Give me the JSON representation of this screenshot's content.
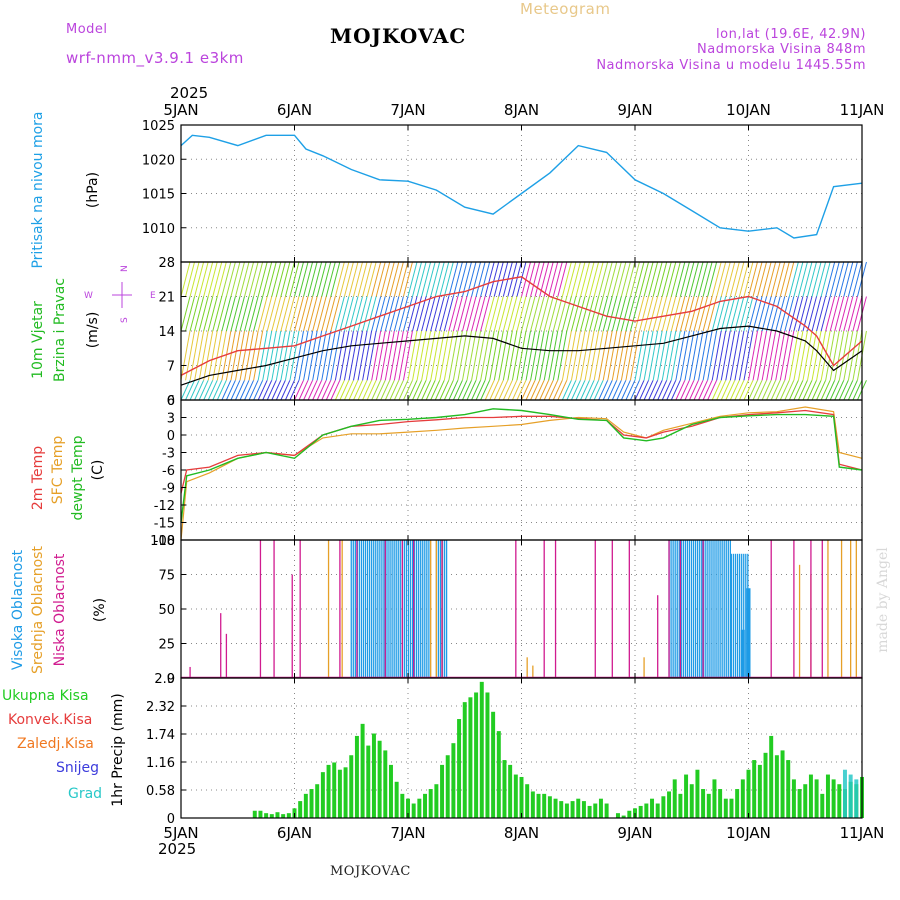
{
  "header": {
    "model_label": "Model",
    "model_name": "wrf-nmm_v3.9.1 e3km",
    "station": "MOJKOVAC",
    "product": "Meteogram",
    "lonlat": "lon,lat (19.6E, 42.9N)",
    "elevation": "Nadmorska Visina 848m",
    "model_elevation": "Nadmorska Visina u modelu 1445.55m",
    "footer_station": "MOJKOVAC",
    "watermark": "made by Angel"
  },
  "colors": {
    "pressure": "#1ea0e6",
    "wind_speed": "#000000",
    "wind_gust": "#e63c3c",
    "t2m": "#e63c3c",
    "sfc": "#e6a028",
    "dewpt": "#22bb22",
    "cloud_high": "#1e9be6",
    "cloud_mid": "#e6a028",
    "cloud_low": "#d01b8f",
    "precip_total": "#22cc22",
    "precip_conv": "#e63c3c",
    "precip_frz": "#f07820",
    "precip_snow": "#3c3cdc",
    "precip_graupel": "#28c8c8",
    "compass": "#bb44dd"
  },
  "time_axis": {
    "year": "2025",
    "labels": [
      "5JAN",
      "6JAN",
      "7JAN",
      "8JAN",
      "9JAN",
      "10JAN",
      "11JAN"
    ]
  },
  "chart_data": [
    {
      "type": "line",
      "id": "pressure",
      "title": "Pritisak na nivou mora",
      "ylabel": "(hPa)",
      "ylim": [
        1005,
        1025
      ],
      "yticks": [
        "1025",
        "1020",
        "1015",
        "1010"
      ],
      "x": [
        0,
        0.1,
        0.25,
        0.5,
        0.75,
        1.0,
        1.1,
        1.25,
        1.5,
        1.75,
        2.0,
        2.25,
        2.5,
        2.75,
        3.0,
        3.25,
        3.5,
        3.75,
        4.0,
        4.25,
        4.5,
        4.75,
        5.0,
        5.25,
        5.4,
        5.6,
        5.75,
        6.0
      ],
      "values": [
        1022,
        1023.5,
        1023.2,
        1022,
        1023.5,
        1023.5,
        1021.5,
        1020.5,
        1018.5,
        1017,
        1016.8,
        1015.5,
        1013,
        1012,
        1015,
        1018,
        1022,
        1021,
        1017,
        1015,
        1012.5,
        1010,
        1009.5,
        1010,
        1008.5,
        1009,
        1016,
        1016.5
      ]
    },
    {
      "type": "line",
      "id": "wind",
      "title": "10m Vjetar Brzina i Pravac",
      "ylabel": "(m/s)",
      "ylim": [
        0,
        28
      ],
      "yticks": [
        "28",
        "21",
        "14",
        "7",
        "0"
      ],
      "compass": {
        "n": "N",
        "s": "S",
        "e": "E",
        "w": "W"
      },
      "series": [
        {
          "name": "Wind speed",
          "x": [
            0,
            0.25,
            0.5,
            0.75,
            1.0,
            1.25,
            1.5,
            1.75,
            2.0,
            2.25,
            2.5,
            2.75,
            3.0,
            3.25,
            3.5,
            3.75,
            4.0,
            4.25,
            4.5,
            4.75,
            5.0,
            5.25,
            5.5,
            5.6,
            5.75,
            6.0
          ],
          "values": [
            3,
            5,
            6,
            7,
            8.5,
            10,
            11,
            11.5,
            12,
            12.5,
            13,
            12.5,
            10.5,
            10,
            10,
            10.5,
            11,
            11.5,
            13,
            14.5,
            15,
            14,
            12,
            10,
            6,
            10
          ]
        },
        {
          "name": "Wind gust",
          "x": [
            0,
            0.25,
            0.5,
            0.75,
            1.0,
            1.25,
            1.5,
            1.75,
            2.0,
            2.25,
            2.5,
            2.75,
            3.0,
            3.25,
            3.5,
            3.75,
            4.0,
            4.25,
            4.5,
            4.75,
            5.0,
            5.25,
            5.5,
            5.6,
            5.75,
            6.0
          ],
          "values": [
            5,
            8,
            10,
            10.5,
            11,
            13,
            15,
            17,
            19,
            21,
            22,
            24,
            25,
            21,
            19,
            17,
            16,
            17,
            18,
            20,
            21,
            19,
            15,
            13,
            7,
            12
          ]
        }
      ]
    },
    {
      "type": "line",
      "id": "temperature",
      "labels": [
        "2m Temp",
        "SFC Temp",
        "dewpt Temp"
      ],
      "ylabel": "(C)",
      "ylim": [
        -18,
        6
      ],
      "yticks": [
        "6",
        "3",
        "0",
        "-3",
        "-6",
        "-9",
        "-12",
        "-15",
        "-18"
      ],
      "series": [
        {
          "name": "2m Temp",
          "x": [
            0,
            0.05,
            0.25,
            0.5,
            0.75,
            1.0,
            1.25,
            1.5,
            1.75,
            2.0,
            2.25,
            2.5,
            2.75,
            3.0,
            3.25,
            3.5,
            3.75,
            3.9,
            4.1,
            4.25,
            4.5,
            4.75,
            5.0,
            5.25,
            5.5,
            5.75,
            5.8,
            6.0
          ],
          "values": [
            -10,
            -6,
            -5.5,
            -3.5,
            -3,
            -3.5,
            0,
            1.5,
            1.8,
            2.3,
            2.6,
            3.0,
            3.0,
            3.2,
            3.2,
            2.8,
            2.5,
            0,
            -0.5,
            0.5,
            1.5,
            3.0,
            3.5,
            3.8,
            4.2,
            3.5,
            -5,
            -6
          ]
        },
        {
          "name": "SFC Temp",
          "x": [
            0,
            0.05,
            0.25,
            0.5,
            0.75,
            1.0,
            1.25,
            1.5,
            1.75,
            2.0,
            2.25,
            2.5,
            2.75,
            3.0,
            3.25,
            3.5,
            3.75,
            3.9,
            4.1,
            4.25,
            4.5,
            4.75,
            5.0,
            5.25,
            5.5,
            5.75,
            5.8,
            6.0
          ],
          "values": [
            -18,
            -8,
            -6.5,
            -4,
            -3,
            -3.5,
            -0.5,
            0.2,
            0.2,
            0.5,
            0.8,
            1.2,
            1.5,
            1.8,
            2.5,
            3.0,
            2.8,
            0.5,
            -0.5,
            0.8,
            2.0,
            3.2,
            3.8,
            4.0,
            4.8,
            4.0,
            -3,
            -4
          ]
        },
        {
          "name": "dewpt Temp",
          "x": [
            0,
            0.05,
            0.25,
            0.5,
            0.75,
            1.0,
            1.25,
            1.5,
            1.75,
            2.0,
            2.25,
            2.5,
            2.75,
            3.0,
            3.25,
            3.5,
            3.75,
            3.9,
            4.1,
            4.25,
            4.5,
            4.75,
            5.0,
            5.25,
            5.5,
            5.75,
            5.8,
            6.0
          ],
          "values": [
            -15,
            -7,
            -6,
            -4,
            -3,
            -4,
            0,
            1.5,
            2.5,
            2.7,
            3,
            3.5,
            4.5,
            4.2,
            3.5,
            2.7,
            2.5,
            -0.5,
            -1,
            -0.5,
            1.8,
            3.0,
            3.3,
            3.5,
            3.5,
            3.2,
            -5.5,
            -6
          ]
        }
      ]
    },
    {
      "type": "bar",
      "id": "cloud",
      "labels": [
        "Visoka Oblacnost",
        "Srednja Oblacnost",
        "Niska Oblacnost"
      ],
      "ylabel": "(%)",
      "ylim": [
        0,
        100
      ],
      "yticks": [
        "100",
        "75",
        "50",
        "25",
        "0"
      ],
      "series": [
        {
          "name": "Niska Oblacnost",
          "x": [
            0.08,
            0.35,
            0.4,
            0.7,
            0.82,
            0.98,
            1.05,
            1.4,
            1.55,
            1.8,
            1.95,
            2.05,
            2.3,
            2.95,
            3.2,
            3.3,
            3.65,
            3.8,
            3.95,
            4.2,
            4.3,
            4.4,
            4.6,
            5.2,
            5.4,
            5.55,
            5.65
          ],
          "values": [
            8,
            47,
            32,
            100,
            100,
            75,
            100,
            100,
            100,
            100,
            100,
            100,
            100,
            100,
            100,
            100,
            100,
            100,
            100,
            60,
            100,
            100,
            100,
            100,
            100,
            100,
            100
          ]
        },
        {
          "name": "Srednja Oblacnost",
          "x": [
            1.3,
            1.42,
            2.2,
            2.25,
            2.3,
            3.05,
            3.1,
            4.08,
            5.45,
            5.55,
            5.7,
            5.82,
            5.9,
            5.95
          ],
          "values": [
            100,
            100,
            100,
            100,
            100,
            15,
            9,
            15,
            82,
            75,
            100,
            100,
            100,
            100
          ]
        },
        {
          "name": "Visoka Oblacnost",
          "range_fills": [
            [
              1.5,
              2.2,
              100
            ],
            [
              2.25,
              2.35,
              100
            ],
            [
              4.3,
              4.85,
              100
            ],
            [
              4.85,
              5.0,
              90
            ]
          ],
          "x": [
            4.95,
            5.0
          ],
          "values": [
            35,
            65
          ]
        }
      ]
    },
    {
      "type": "bar",
      "id": "precip",
      "labels": [
        "Ukupna Kisa",
        "Konvek.Kisa",
        "Zaledj.Kisa",
        "Snijeg",
        "Grad"
      ],
      "ylabel": "1hr Precip (mm)",
      "ylim": [
        0,
        2.9
      ],
      "yticks": [
        "2.9",
        "2.32",
        "1.74",
        "1.16",
        "0.58",
        "0"
      ],
      "x": [
        0.65,
        0.7,
        0.75,
        0.8,
        0.85,
        0.9,
        0.95,
        1.0,
        1.05,
        1.1,
        1.15,
        1.2,
        1.25,
        1.3,
        1.35,
        1.4,
        1.45,
        1.5,
        1.55,
        1.6,
        1.65,
        1.7,
        1.75,
        1.8,
        1.85,
        1.9,
        1.95,
        2.0,
        2.05,
        2.1,
        2.15,
        2.2,
        2.25,
        2.3,
        2.35,
        2.4,
        2.45,
        2.5,
        2.55,
        2.6,
        2.65,
        2.7,
        2.75,
        2.8,
        2.85,
        2.9,
        2.95,
        3.0,
        3.05,
        3.1,
        3.15,
        3.2,
        3.25,
        3.3,
        3.35,
        3.4,
        3.45,
        3.5,
        3.55,
        3.6,
        3.65,
        3.7,
        3.75,
        3.85,
        3.9,
        3.95,
        4.0,
        4.05,
        4.1,
        4.15,
        4.2,
        4.25,
        4.3,
        4.35,
        4.4,
        4.45,
        4.5,
        4.55,
        4.6,
        4.65,
        4.7,
        4.75,
        4.8,
        4.85,
        4.9,
        4.95,
        5.0,
        5.05,
        5.1,
        5.15,
        5.2,
        5.25,
        5.3,
        5.35,
        5.4,
        5.45,
        5.5,
        5.55,
        5.6,
        5.65,
        5.7,
        5.75,
        5.8,
        5.85,
        5.9,
        5.95,
        6.0
      ],
      "values": [
        0.15,
        0.15,
        0.1,
        0.08,
        0.12,
        0.08,
        0.1,
        0.2,
        0.35,
        0.5,
        0.6,
        0.7,
        0.95,
        1.1,
        1.15,
        1.0,
        1.05,
        1.3,
        1.7,
        1.95,
        1.5,
        1.75,
        1.6,
        1.4,
        1.1,
        0.75,
        0.5,
        0.4,
        0.3,
        0.4,
        0.5,
        0.6,
        0.7,
        1.1,
        1.3,
        1.55,
        2.05,
        2.4,
        2.5,
        2.6,
        2.82,
        2.6,
        2.2,
        1.8,
        1.2,
        1.1,
        0.9,
        0.85,
        0.7,
        0.55,
        0.5,
        0.5,
        0.45,
        0.4,
        0.35,
        0.3,
        0.35,
        0.4,
        0.35,
        0.25,
        0.3,
        0.4,
        0.3,
        0.1,
        0.05,
        0.15,
        0.2,
        0.25,
        0.3,
        0.4,
        0.3,
        0.45,
        0.55,
        0.8,
        0.5,
        0.9,
        0.7,
        1.0,
        0.6,
        0.5,
        0.8,
        0.6,
        0.4,
        0.4,
        0.6,
        0.8,
        1.0,
        1.2,
        1.1,
        1.35,
        1.7,
        1.3,
        1.4,
        1.2,
        0.8,
        0.6,
        0.7,
        0.9,
        0.8,
        0.5,
        0.9,
        0.8,
        0.7,
        0.6,
        0.75,
        0.7,
        0.85
      ],
      "snow_x": [
        5.85,
        5.9,
        5.95
      ],
      "snow_values": [
        1.0,
        0.9,
        0.8
      ]
    }
  ]
}
